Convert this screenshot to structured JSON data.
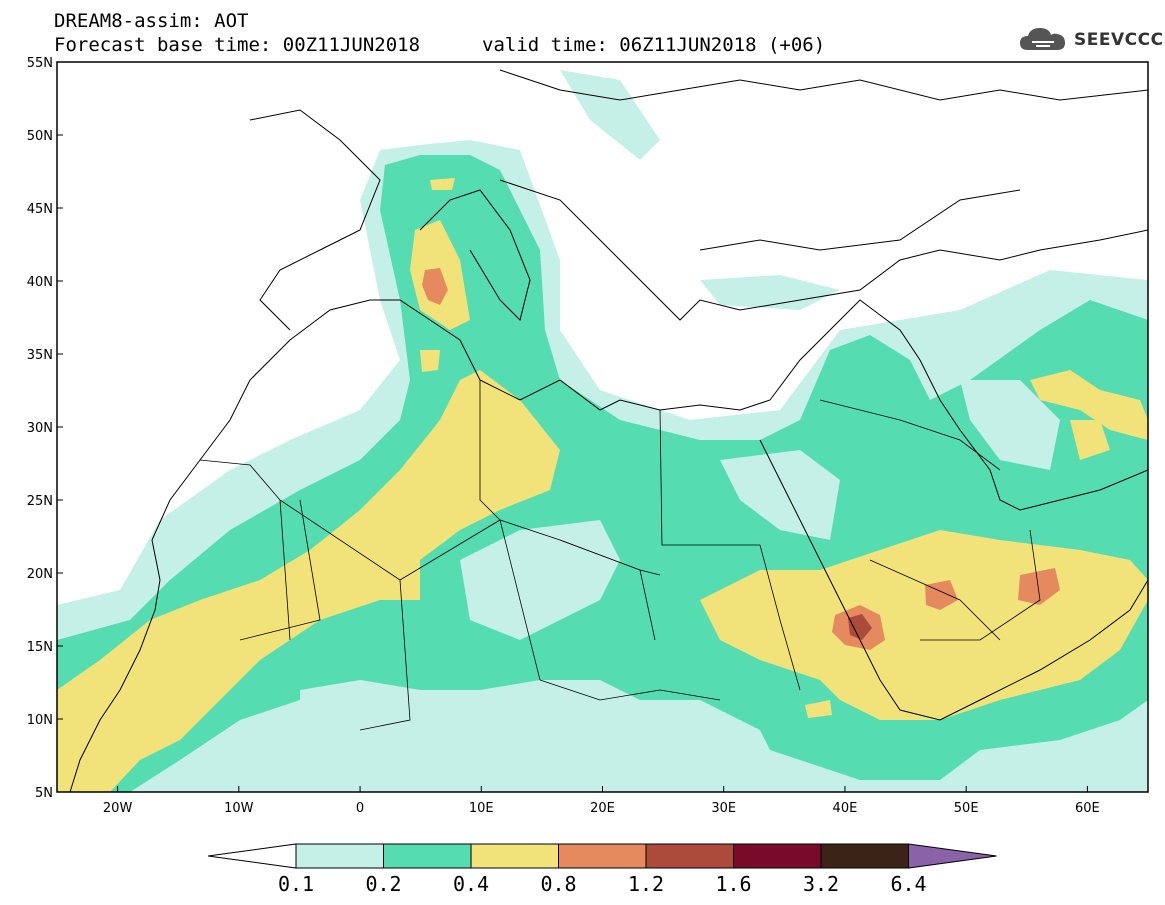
{
  "header": {
    "title": "DREAM8-assim: AOT",
    "base_time": "Forecast base time: 00Z11JUN2018",
    "valid_time": "valid time: 06Z11JUN2018 (+06)",
    "logo_text": "SEEVCCC"
  },
  "map": {
    "lon_range": [
      -25,
      65
    ],
    "lat_range": [
      5,
      55
    ],
    "lat_ticks": [
      "55N",
      "50N",
      "45N",
      "40N",
      "35N",
      "30N",
      "25N",
      "20N",
      "15N",
      "10N",
      "5N"
    ],
    "lon_ticks": [
      "20W",
      "10W",
      "0",
      "10E",
      "20E",
      "30E",
      "40E",
      "50E",
      "60E"
    ],
    "land_color": "#ffffff",
    "border_color": "#000000"
  },
  "colorbar": {
    "labels": [
      "0.1",
      "0.2",
      "0.4",
      "0.8",
      "1.2",
      "1.6",
      "3.2",
      "6.4"
    ],
    "colors": [
      "#c5f0e8",
      "#55dcb0",
      "#f2e27a",
      "#e58a5f",
      "#ac4b3c",
      "#7a0a2a",
      "#3b2317",
      "#8a62a8"
    ]
  }
}
